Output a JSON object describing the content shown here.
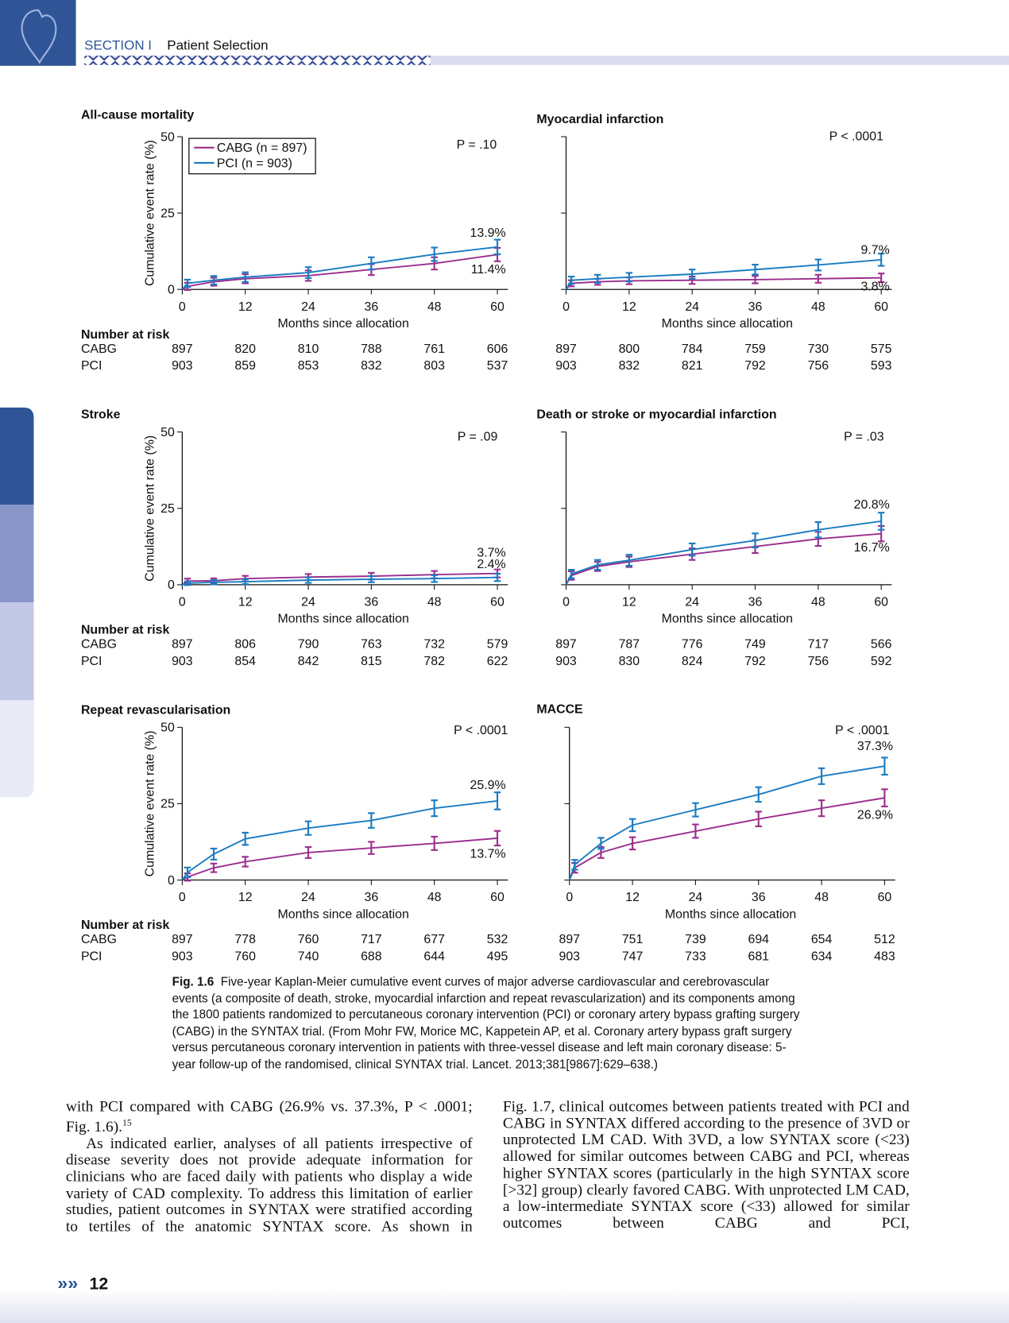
{
  "header": {
    "section": "SECTION I",
    "title": "Patient Selection"
  },
  "chart_data": [
    {
      "type": "line",
      "title": "All-cause mortality",
      "annotation": "P = .10",
      "xlabel": "Months since allocation",
      "ylabel": "Cumulative event rate (%)",
      "legend": [
        "CABG (n = 897)",
        "PCI (n = 903)"
      ],
      "x": [
        0,
        1,
        6,
        12,
        24,
        36,
        48,
        60
      ],
      "xlim": [
        0,
        62
      ],
      "xticks": [
        0,
        12,
        24,
        36,
        48,
        60
      ],
      "ylim": [
        0,
        50
      ],
      "yticks": [
        0,
        25,
        50
      ],
      "series": [
        {
          "name": "CABG",
          "color": "#9b2f8e",
          "values": [
            0,
            1.0,
            2.5,
            3.5,
            4.5,
            6.5,
            8.5,
            11.4
          ],
          "errors": [
            null,
            1.2,
            1.3,
            1.5,
            1.7,
            1.8,
            2.0,
            2.2
          ],
          "value_labels": [
            null,
            null,
            null,
            null,
            null,
            null,
            null,
            "11.4%"
          ]
        },
        {
          "name": "PCI",
          "color": "#1a7cc1",
          "values": [
            0,
            2.0,
            3.0,
            4.0,
            5.5,
            8.5,
            11.5,
            13.9
          ],
          "errors": [
            null,
            1.2,
            1.4,
            1.6,
            1.8,
            2.0,
            2.2,
            2.4
          ],
          "value_labels": [
            null,
            null,
            null,
            null,
            null,
            null,
            null,
            "13.9%"
          ]
        }
      ],
      "risk": {
        "title": "Number at risk",
        "rows": [
          {
            "values": [
              "897",
              "820",
              "810",
              "788",
              "761",
              "606"
            ]
          },
          {
            "values": [
              "903",
              "859",
              "853",
              "832",
              "803",
              "537"
            ]
          }
        ]
      }
    },
    {
      "type": "line",
      "title": "Myocardial infarction",
      "annotation": "P < .0001",
      "xlabel": "Months since allocation",
      "x": [
        0,
        1,
        6,
        12,
        24,
        36,
        48,
        60
      ],
      "xlim": [
        0,
        62
      ],
      "xticks": [
        0,
        12,
        24,
        36,
        48,
        60
      ],
      "ylim": [
        0,
        50
      ],
      "yticks": [
        0,
        25,
        50
      ],
      "series": [
        {
          "color": "#9b2f8e",
          "values": [
            0,
            2.0,
            2.5,
            2.8,
            3.0,
            3.2,
            3.5,
            3.8
          ],
          "errors": [
            null,
            1.0,
            1.0,
            1.1,
            1.2,
            1.2,
            1.3,
            1.4
          ],
          "value_labels": [
            null,
            null,
            null,
            null,
            null,
            null,
            null,
            "3.8%"
          ]
        },
        {
          "color": "#1a7cc1",
          "values": [
            0,
            3.0,
            3.5,
            4.0,
            5.0,
            6.5,
            8.0,
            9.7
          ],
          "errors": [
            null,
            1.2,
            1.3,
            1.4,
            1.5,
            1.6,
            1.8,
            2.0
          ],
          "value_labels": [
            null,
            null,
            null,
            null,
            null,
            null,
            null,
            "9.7%"
          ]
        }
      ],
      "risk": {
        "rows": [
          {
            "values": [
              "897",
              "800",
              "784",
              "759",
              "730",
              "575"
            ]
          },
          {
            "values": [
              "903",
              "832",
              "821",
              "792",
              "756",
              "593"
            ]
          }
        ]
      }
    },
    {
      "type": "line",
      "title": "Stroke",
      "annotation": "P = .09",
      "xlabel": "Months since allocation",
      "ylabel": "Cumulative event rate (%)",
      "x": [
        0,
        1,
        6,
        12,
        24,
        36,
        48,
        60
      ],
      "xlim": [
        0,
        62
      ],
      "xticks": [
        0,
        12,
        24,
        36,
        48,
        60
      ],
      "ylim": [
        0,
        50
      ],
      "yticks": [
        0,
        25,
        50
      ],
      "series": [
        {
          "name": "CABG",
          "color": "#9b2f8e",
          "values": [
            0,
            1.2,
            1.3,
            2.0,
            2.5,
            2.8,
            3.3,
            3.7
          ],
          "errors": [
            null,
            0.8,
            0.8,
            0.9,
            1.0,
            1.1,
            1.2,
            1.3
          ],
          "value_labels": [
            null,
            null,
            null,
            null,
            null,
            null,
            null,
            "3.7%"
          ]
        },
        {
          "name": "PCI",
          "color": "#1a7cc1",
          "values": [
            0,
            0.5,
            0.8,
            1.0,
            1.5,
            1.8,
            2.0,
            2.4
          ],
          "errors": [
            null,
            0.6,
            0.7,
            0.8,
            0.9,
            1.0,
            1.1,
            1.2
          ],
          "value_labels": [
            null,
            null,
            null,
            null,
            null,
            null,
            null,
            "2.4%"
          ]
        }
      ],
      "risk": {
        "title": "Number at risk",
        "rows": [
          {
            "values": [
              "897",
              "806",
              "790",
              "763",
              "732",
              "579"
            ]
          },
          {
            "values": [
              "903",
              "854",
              "842",
              "815",
              "782",
              "622"
            ]
          }
        ]
      }
    },
    {
      "type": "line",
      "title": "Death or stroke or myocardial infarction",
      "annotation": "P = .03",
      "xlabel": "Months since allocation",
      "x": [
        0,
        1,
        6,
        12,
        24,
        36,
        48,
        60
      ],
      "xlim": [
        0,
        62
      ],
      "xticks": [
        0,
        12,
        24,
        36,
        48,
        60
      ],
      "ylim": [
        0,
        50
      ],
      "yticks": [
        0,
        25,
        50
      ],
      "series": [
        {
          "color": "#9b2f8e",
          "values": [
            0,
            3.0,
            6.0,
            7.5,
            10.0,
            12.5,
            15.0,
            16.7
          ],
          "errors": [
            null,
            1.4,
            1.5,
            1.7,
            1.9,
            2.1,
            2.3,
            2.5
          ],
          "value_labels": [
            null,
            null,
            null,
            null,
            null,
            null,
            null,
            "16.7%"
          ]
        },
        {
          "color": "#1a7cc1",
          "values": [
            0,
            3.5,
            6.5,
            8.0,
            11.5,
            14.5,
            18.0,
            20.8
          ],
          "errors": [
            null,
            1.4,
            1.6,
            1.8,
            2.0,
            2.3,
            2.5,
            2.8
          ],
          "value_labels": [
            null,
            null,
            null,
            null,
            null,
            null,
            null,
            "20.8%"
          ]
        }
      ],
      "risk": {
        "rows": [
          {
            "values": [
              "897",
              "787",
              "776",
              "749",
              "717",
              "566"
            ]
          },
          {
            "values": [
              "903",
              "830",
              "824",
              "792",
              "756",
              "592"
            ]
          }
        ]
      }
    },
    {
      "type": "line",
      "title": "Repeat revascularisation",
      "annotation": "P < .0001",
      "xlabel": "Months since allocation",
      "ylabel": "Cumulative event rate (%)",
      "x": [
        0,
        1,
        6,
        12,
        24,
        36,
        48,
        60
      ],
      "xlim": [
        0,
        62
      ],
      "xticks": [
        0,
        12,
        24,
        36,
        48,
        60
      ],
      "ylim": [
        0,
        50
      ],
      "yticks": [
        0,
        25,
        50
      ],
      "series": [
        {
          "name": "CABG",
          "color": "#9b2f8e",
          "values": [
            0,
            1.0,
            4.0,
            6.0,
            9.0,
            10.5,
            12.0,
            13.7
          ],
          "errors": [
            null,
            1.2,
            1.4,
            1.6,
            1.8,
            2.0,
            2.2,
            2.4
          ],
          "value_labels": [
            null,
            null,
            null,
            null,
            null,
            null,
            null,
            "13.7%"
          ]
        },
        {
          "name": "PCI",
          "color": "#1a7cc1",
          "values": [
            0,
            2.5,
            8.5,
            13.5,
            17.0,
            19.5,
            23.5,
            25.9
          ],
          "errors": [
            null,
            1.6,
            1.8,
            2.0,
            2.2,
            2.4,
            2.6,
            2.8
          ],
          "value_labels": [
            null,
            null,
            null,
            null,
            null,
            null,
            null,
            "25.9%"
          ]
        }
      ],
      "risk": {
        "title": "Number at risk",
        "rows": [
          {
            "values": [
              "897",
              "778",
              "760",
              "717",
              "677",
              "532"
            ]
          },
          {
            "values": [
              "903",
              "760",
              "740",
              "688",
              "644",
              "495"
            ]
          }
        ]
      }
    },
    {
      "type": "line",
      "title": "MACCE",
      "annotation": "P < .0001",
      "xlabel": "Months since allocation",
      "x": [
        0,
        1,
        6,
        12,
        24,
        36,
        48,
        60
      ],
      "xlim": [
        0,
        62
      ],
      "xticks": [
        0,
        12,
        24,
        36,
        48,
        60
      ],
      "ylim": [
        0,
        50
      ],
      "yticks": [
        0,
        25,
        50
      ],
      "series": [
        {
          "color": "#9b2f8e",
          "values": [
            0,
            4.0,
            9.0,
            12.0,
            16.0,
            20.0,
            23.5,
            26.9
          ],
          "errors": [
            null,
            1.6,
            1.8,
            2.0,
            2.2,
            2.4,
            2.6,
            2.8
          ],
          "value_labels": [
            null,
            null,
            null,
            null,
            null,
            null,
            null,
            "26.9%"
          ]
        },
        {
          "color": "#1a7cc1",
          "values": [
            0,
            5.0,
            12.0,
            18.0,
            23.0,
            28.0,
            34.0,
            37.3
          ],
          "errors": [
            null,
            1.6,
            1.8,
            2.0,
            2.2,
            2.4,
            2.6,
            2.8
          ],
          "value_labels": [
            null,
            null,
            null,
            null,
            null,
            null,
            null,
            "37.3%"
          ]
        }
      ],
      "risk": {
        "rows": [
          {
            "values": [
              "897",
              "751",
              "739",
              "694",
              "654",
              "512"
            ]
          },
          {
            "values": [
              "903",
              "747",
              "733",
              "681",
              "634",
              "483"
            ]
          }
        ]
      }
    }
  ],
  "caption": {
    "label": "Fig. 1.6",
    "text": "Five-year Kaplan-Meier cumulative event curves of major adverse cardiovascular and cerebrovascular events (a composite of death, stroke, myocardial infarction and repeat revascularization) and its components among the 1800 patients randomized to percutaneous coronary intervention (PCI) or coronary artery bypass grafting surgery (CABG) in the SYNTAX trial. (From Mohr FW, Morice MC, Kappetein AP, et al. Coronary artery bypass graft surgery versus percutaneous coronary intervention in patients with three-vessel disease and left main coronary disease: 5-year follow-up of the randomised, clinical SYNTAX trial. Lancet. 2013;381[9867]:629–638.)"
  },
  "body": {
    "left": [
      "with PCI compared with CABG (26.9% vs. 37.3%, P < .0001; Fig. 1.6).",
      "As indicated earlier, analyses of all patients irrespective of disease severity does not provide adequate information for clinicians who are faced daily with patients who display a wide variety of CAD complexity. To address this limitation of earlier studies, patient outcomes in SYNTAX were stratified according to tertiles of the anatomic SYNTAX score. As shown in"
    ],
    "ref": "15",
    "right": [
      "Fig. 1.7, clinical outcomes between patients treated with PCI and CABG in SYNTAX differed according to the presence of 3VD or unprotected LM CAD. With 3VD, a low SYNTAX score (<23) allowed for similar outcomes between CABG and PCI, whereas higher SYNTAX scores (particularly in the high SYNTAX score [>32] group) clearly favored CABG. With unprotected LM CAD, a low-intermediate SYNTAX score (<33) allowed for similar outcomes between CABG and PCI,"
    ]
  },
  "page_number": "12"
}
